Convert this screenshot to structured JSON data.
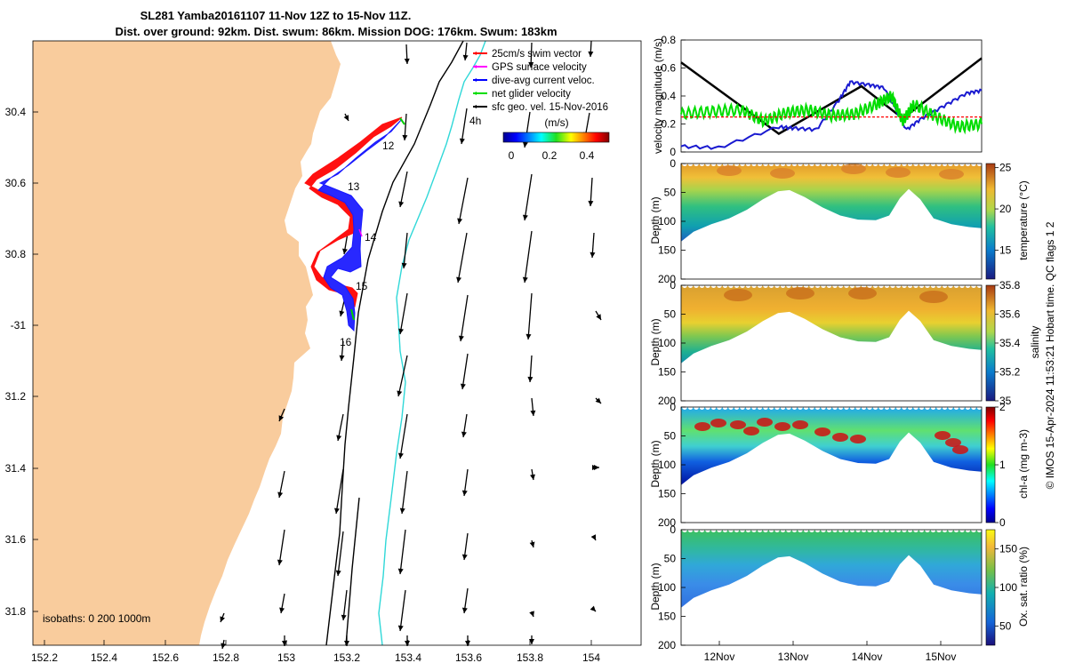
{
  "title": {
    "line1": "SL281 Yamba20161107 11-Nov 12Z to 15-Nov 11Z.",
    "line2": "Dist. over ground: 92km. Dist. swum: 86km. Mission DOG: 176km. Swum: 183km"
  },
  "map": {
    "lon_ticks": [
      "152.2",
      "152.4",
      "152.6",
      "152.8",
      "153",
      "153.2",
      "153.4",
      "153.6",
      "153.8",
      "154"
    ],
    "lat_ticks": [
      "30.4",
      "30.6",
      "30.8",
      "-31",
      "31.2",
      "31.4",
      "31.6",
      "31.8"
    ],
    "legend": [
      {
        "label": "25cm/s swim vector",
        "color": "#ff0000"
      },
      {
        "label": "GPS surface velocity",
        "color": "#ff00ff"
      },
      {
        "label": "dive-avg current veloc.",
        "color": "#0000ff"
      },
      {
        "label": "net glider velocity",
        "color": "#00dd00"
      },
      {
        "label": "sfc geo. vel. 15-Nov-2016",
        "color": "#000000"
      }
    ],
    "colorbar_label": "(m/s)",
    "colorbar_ticks": [
      "0",
      "0.2",
      "0.4"
    ],
    "day_labels": [
      "12",
      "13",
      "14",
      "15",
      "16"
    ],
    "label_4h": "4h",
    "isobaths": "isobaths: 0   200  1000m",
    "colors": {
      "land": "#f9cc9d",
      "isobath200": "#000000",
      "isobath1000": "#30d8d8"
    }
  },
  "chart_data": [
    {
      "type": "line",
      "ylabel": "velocity magnitude (m/s)",
      "ylim": [
        0,
        0.8
      ],
      "xlim": [
        11.5,
        15.5
      ],
      "yticks": [
        "0",
        "0.2",
        "0.4",
        "0.6",
        "0.8"
      ],
      "series": [
        {
          "color": "#000000",
          "x": [
            11.5,
            12.8,
            13.9,
            14.45,
            15.5
          ],
          "values": [
            0.64,
            0.13,
            0.47,
            0.24,
            0.67
          ]
        },
        {
          "color": "#1a1ad0",
          "x": [
            11.5,
            12.0,
            12.8,
            13.0,
            13.3,
            13.6,
            13.75,
            14.0,
            14.2,
            14.5,
            14.7,
            15.0,
            15.3,
            15.5
          ],
          "values": [
            0.04,
            0.03,
            0.18,
            0.17,
            0.16,
            0.37,
            0.5,
            0.48,
            0.46,
            0.16,
            0.24,
            0.33,
            0.42,
            0.44
          ]
        },
        {
          "color": "#00dd00",
          "x": [
            11.5,
            11.9,
            12.3,
            12.6,
            12.9,
            13.2,
            13.5,
            13.8,
            14.1,
            14.3,
            14.45,
            14.6,
            14.9,
            15.2,
            15.5
          ],
          "values": [
            0.27,
            0.29,
            0.3,
            0.22,
            0.28,
            0.3,
            0.26,
            0.27,
            0.34,
            0.4,
            0.22,
            0.34,
            0.25,
            0.18,
            0.2
          ]
        },
        {
          "color": "#ff0000",
          "x": [
            11.5,
            15.5
          ],
          "values": [
            0.25,
            0.25
          ]
        }
      ]
    },
    {
      "type": "heatmap",
      "ylabel": "Depth (m)",
      "yticks": [
        "0",
        "50",
        "100",
        "150",
        "200"
      ],
      "clabel": "temperature (°C)",
      "cticks": [
        "25",
        "20",
        "15"
      ],
      "crange": [
        11.5,
        25.5
      ]
    },
    {
      "type": "heatmap",
      "ylabel": "Depth (m)",
      "yticks": [
        "0",
        "50",
        "100",
        "150",
        "200"
      ],
      "clabel": "salinity",
      "cticks": [
        "35.8",
        "35.6",
        "35.4",
        "35.2",
        "35"
      ],
      "crange": [
        35.0,
        35.8
      ]
    },
    {
      "type": "heatmap",
      "ylabel": "Depth (m)",
      "yticks": [
        "0",
        "50",
        "100",
        "150",
        "200"
      ],
      "clabel": "chl-a (mg m-3)",
      "cticks": [
        "2",
        "1",
        "0"
      ],
      "crange": [
        0,
        2
      ]
    },
    {
      "type": "heatmap",
      "ylabel": "Depth (m)",
      "yticks": [
        "0",
        "50",
        "100",
        "150",
        "200"
      ],
      "clabel": "Ox. sat. ratio (%)",
      "cticks": [
        "150",
        "100",
        "50"
      ],
      "crange": [
        25,
        175
      ],
      "xticks": [
        "12Nov",
        "13Nov",
        "14Nov",
        "15Nov"
      ]
    }
  ],
  "footer": "© IMOS 15-Apr-2024 11:53:21 Hobart time. QC flags 1  2"
}
